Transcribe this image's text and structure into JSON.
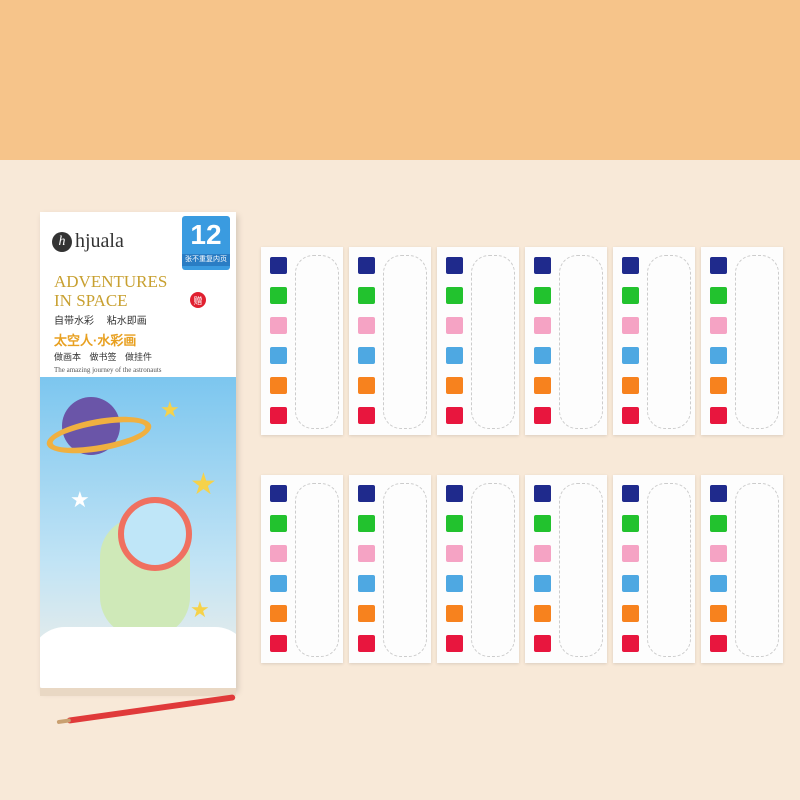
{
  "book": {
    "brand": "hjuala",
    "logo_letter": "h",
    "count": "12",
    "count_note": "张不重复内页",
    "title_line1": "ADVENTURES",
    "title_line2": "IN SPACE",
    "features": "自带水彩 粘水即画",
    "subtitle": "太空人·水彩画",
    "uses": "做画本 做书签 做挂件",
    "tagline": "The amazing journey of the astronauts",
    "gift": "赠"
  },
  "colors": {
    "top_band": "#f6c48a",
    "background": "#f8e9d8",
    "swatches": [
      "#1f2a8c",
      "#22c22e",
      "#f5a3c4",
      "#4ea8e2",
      "#f7821e",
      "#e8163e"
    ]
  },
  "cards": {
    "rows": 2,
    "per_row": 6
  }
}
